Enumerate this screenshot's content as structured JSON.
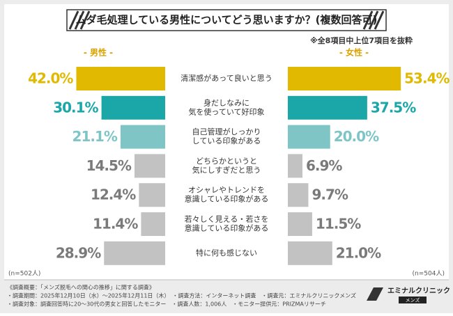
{
  "chart_data": {
    "type": "butterfly-bar",
    "title": "ムダ毛処理している男性についてどう思いますか？(複数回答可)",
    "note": "※全8項目中上位7項目を抜粋",
    "categories": [
      [
        "清潔感があって良いと思う"
      ],
      [
        "身だしなみに",
        "気を使っていて好印象"
      ],
      [
        "自己管理がしっかり",
        "している印象がある"
      ],
      [
        "どちらかというと",
        "気にしすぎだと思う"
      ],
      [
        "オシャレやトレンドを",
        "意識している印象がある"
      ],
      [
        "若々しく見える・若さを",
        "意識している印象がある"
      ],
      [
        "特に何も感じない"
      ]
    ],
    "xlim": [
      0,
      55
    ],
    "colors": [
      "#e1b900",
      "#1ba6a8",
      "#7fc5c6",
      "#c2c2c2",
      "#c2c2c2",
      "#c2c2c2",
      "#c2c2c2"
    ],
    "label_colors": [
      "#e1b900",
      "#1ba6a8",
      "#7fc5c6",
      "#7a7a7a",
      "#7a7a7a",
      "#7a7a7a",
      "#7a7a7a"
    ],
    "series": [
      {
        "name": "- 男性 -",
        "side": "left",
        "n_label": "(n=502人)",
        "values": [
          42.0,
          30.1,
          21.1,
          14.5,
          12.4,
          11.4,
          28.9
        ],
        "value_labels": [
          "42.0%",
          "30.1%",
          "21.1%",
          "14.5%",
          "12.4%",
          "11.4%",
          "28.9%"
        ]
      },
      {
        "name": "- 女性 -",
        "side": "right",
        "n_label": "(n=504人)",
        "values": [
          53.4,
          37.5,
          20.0,
          6.9,
          9.7,
          11.5,
          21.0
        ],
        "value_labels": [
          "53.4%",
          "37.5%",
          "20.0%",
          "6.9%",
          "9.7%",
          "11.5%",
          "21.0%"
        ]
      }
    ]
  },
  "footer": {
    "lines": [
      "《調査概要：「メンズ脱毛への関心の推移」に関する調査》",
      "・調査期間：2025年12月10日（水）～2025年12月11日（木）　・調査方法：インターネット調査　・調査元：エミナルクリニックメンズ",
      "・調査対象：調査回答時に20～30代の男女と回答したモニター　・調査人数：1,006人　・モニター提供元：PRIZMAリサーチ"
    ]
  },
  "logo": {
    "name": "エミナルクリニック",
    "sub": "メンズ"
  }
}
